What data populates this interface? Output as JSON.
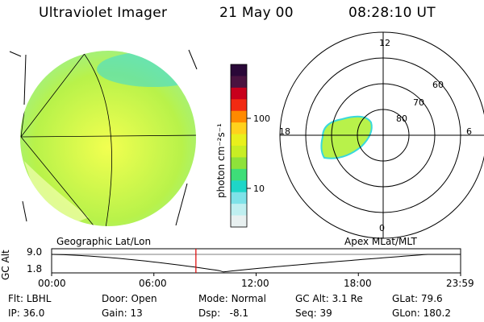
{
  "header": {
    "instrument": "Ultraviolet Imager",
    "date": "21 May 00",
    "time": "08:28:10 UT"
  },
  "colorbar": {
    "unit_label": "photon cm⁻²s⁻¹",
    "tick_high": "100",
    "tick_low": "10",
    "colors": [
      "#2a0838",
      "#4a1340",
      "#c8001c",
      "#f22a12",
      "#ff8a00",
      "#ffd21c",
      "#e8f01c",
      "#c8ee24",
      "#8ee23a",
      "#3ede78",
      "#1ed6c8",
      "#7ee2e8",
      "#bfeff0",
      "#e8f0f0"
    ]
  },
  "geo_panel": {
    "label": "Geographic Lat/Lon",
    "image_colors": [
      "#f2ff50",
      "#b8f24a",
      "#9ef08a",
      "#38d8dc"
    ]
  },
  "polar_panel": {
    "label": "Apex MLat/MLT",
    "mlt_labels": {
      "top": "12",
      "bottom": "0",
      "left": "18",
      "right": "6"
    },
    "lat_labels": [
      "60",
      "70",
      "80"
    ]
  },
  "timeline": {
    "ylabel": "GC Alt",
    "yticks": [
      "9.0",
      "1.8"
    ],
    "xticks": [
      "00:00",
      "06:00",
      "12:00",
      "18:00",
      "23:59"
    ],
    "marker_time": "08:28"
  },
  "status": {
    "row1": [
      {
        "label": "Flt:",
        "value": "LBHL"
      },
      {
        "label": "Door:",
        "value": "Open"
      },
      {
        "label": "Mode:",
        "value": "Normal"
      },
      {
        "label": "GC Alt:",
        "value": "3.1 Re"
      },
      {
        "label": "GLat:",
        "value": "79.6"
      }
    ],
    "row2": [
      {
        "label": "IP:",
        "value": "36.0"
      },
      {
        "label": "Gain:",
        "value": "13"
      },
      {
        "label": "Dsp:",
        "value": "-8.1"
      },
      {
        "label": "Seq:",
        "value": "39"
      },
      {
        "label": "GLon:",
        "value": "180.2"
      }
    ]
  }
}
